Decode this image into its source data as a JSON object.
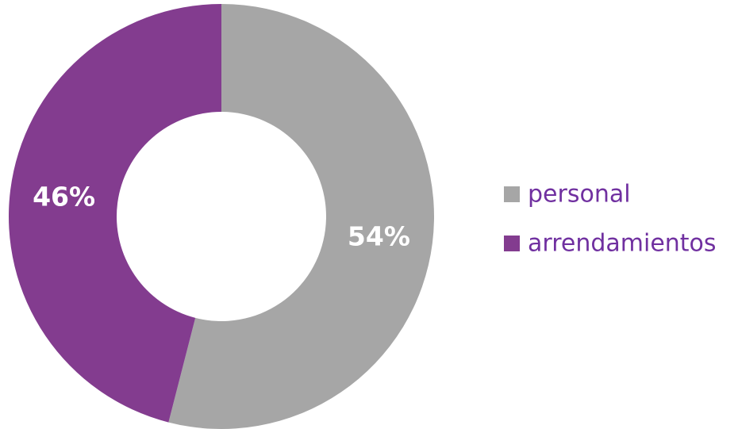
{
  "chart_data": {
    "type": "pie",
    "style": "donut",
    "categories": [
      "personal",
      "arrendamientos"
    ],
    "values": [
      54,
      46
    ],
    "value_labels": [
      "54%",
      "46%"
    ],
    "colors": [
      "#a6a6a6",
      "#833c8f"
    ],
    "legend": {
      "position": "right",
      "text_color": "#7030a0",
      "items": [
        {
          "label": "personal",
          "color": "#a6a6a6"
        },
        {
          "label": "arrendamientos",
          "color": "#833c8f"
        }
      ]
    },
    "title": ""
  }
}
